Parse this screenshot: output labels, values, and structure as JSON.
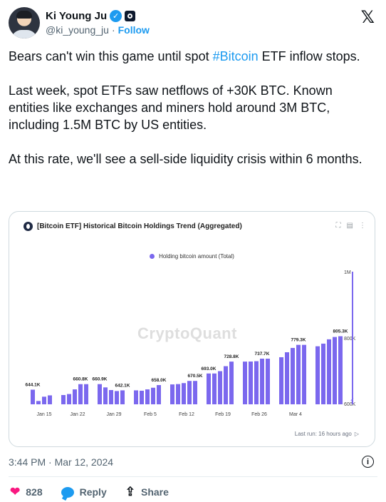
{
  "author": {
    "name": "Ki Young Ju",
    "handle": "@ki_young_ju",
    "separator": "·",
    "follow_label": "Follow",
    "verified_icon": "verified-badge-icon",
    "affiliate_icon": "cryptoquant-affiliate-icon"
  },
  "brand_icon": "x-logo-icon",
  "tweet": {
    "p1_before": "Bears can't win this game until spot ",
    "p1_hashtag": "#Bitcoin",
    "p1_after": " ETF inflow stops.",
    "p2": "Last week, spot ETFs saw netflows of +30K BTC. Known entities like exchanges and miners hold around 3M BTC, including 1.5M BTC by US entities.",
    "p3": "At this rate, we'll see a sell-side liquidity crisis within 6 months."
  },
  "card": {
    "title": "[Bitcoin ETF] Historical Bitcoin Holdings Trend (Aggregated)",
    "watermark": "CryptoQuant",
    "last_run": "Last run: 16 hours ago"
  },
  "chart_data": {
    "type": "bar",
    "title": "[Bitcoin ETF] Historical Bitcoin Holdings Trend (Aggregated)",
    "legend": "Holding bitcoin amount (Total)",
    "legend_position": "top-center",
    "color": "#7b68ee",
    "y_ticks": [
      "1M",
      "800K",
      "600K"
    ],
    "y_tick_values": [
      1000000,
      800000,
      600000
    ],
    "ylim": [
      600000,
      1000000
    ],
    "y_axis_broken": true,
    "x_ticks": [
      "Jan 15",
      "Jan 22",
      "Jan 29",
      "Feb 5",
      "Feb 12",
      "Feb 19",
      "Feb 26",
      "Mar 4"
    ],
    "groups": [
      {
        "values": [
          644100,
          610000,
          623000,
          627000
        ]
      },
      {
        "values": [
          628000,
          631000,
          645000,
          660800,
          660800
        ]
      },
      {
        "values": [
          660900,
          651000,
          643000,
          640000,
          642100
        ]
      },
      {
        "values": [
          642100,
          641000,
          645000,
          650000,
          658000
        ]
      },
      {
        "values": [
          660000,
          661000,
          664000,
          670500,
          670500
        ]
      },
      {
        "values": [
          693000,
          693000,
          700000,
          715000,
          728800
        ]
      },
      {
        "values": [
          728800,
          729000,
          730000,
          737700,
          737700
        ]
      },
      {
        "values": [
          742000,
          757000,
          770000,
          779300,
          779300
        ]
      },
      {
        "values": [
          775000,
          783000,
          796000,
          803000,
          805300
        ]
      },
      {
        "values": [
          1000000
        ]
      }
    ],
    "data_labels": [
      {
        "group": 0,
        "bar": 0,
        "text": "644.1K"
      },
      {
        "group": 1,
        "bar": 3,
        "text": "660.8K"
      },
      {
        "group": 2,
        "bar": 0,
        "text": "660.9K"
      },
      {
        "group": 2,
        "bar": 4,
        "text": "642.1K"
      },
      {
        "group": 3,
        "bar": 4,
        "text": "658.0K"
      },
      {
        "group": 4,
        "bar": 4,
        "text": "670.5K"
      },
      {
        "group": 5,
        "bar": 0,
        "text": "693.0K"
      },
      {
        "group": 5,
        "bar": 4,
        "text": "728.8K"
      },
      {
        "group": 6,
        "bar": 3,
        "text": "737.7K"
      },
      {
        "group": 7,
        "bar": 3,
        "text": "779.3K"
      },
      {
        "group": 8,
        "bar": 4,
        "text": "805.3K"
      }
    ]
  },
  "timestamp": "3:44 PM · Mar 12, 2024",
  "actions": {
    "likes": "828",
    "reply_label": "Reply",
    "share_label": "Share"
  }
}
